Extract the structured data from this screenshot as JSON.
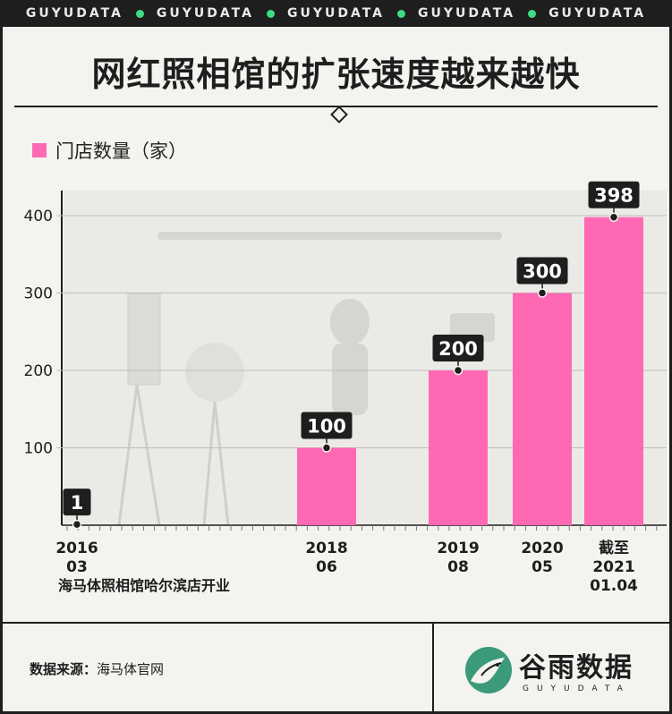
{
  "topbar": {
    "items": [
      "GUYUDATA",
      "GUYUDATA",
      "GUYUDATA",
      "GUYUDATA",
      "GUYUDATA"
    ],
    "dot_color": "#3ddc84"
  },
  "title": "网红照相馆的扩张速度越来越快",
  "legend": {
    "label": "门店数量（家）",
    "color": "#ff69b4"
  },
  "chart_data": {
    "type": "bar",
    "title": "网红照相馆的扩张速度越来越快",
    "categories": [
      "2016\n03",
      "2018\n06",
      "2019\n08",
      "2020\n05",
      "截至\n2021\n01.04"
    ],
    "date_values": [
      "2016-03",
      "2018-06",
      "2019-08",
      "2020-05",
      "2021-01-04"
    ],
    "series": [
      {
        "name": "门店数量（家）",
        "values": [
          1,
          100,
          200,
          300,
          398
        ],
        "color": "#ff69b4"
      }
    ],
    "data_labels": [
      "1",
      "100",
      "200",
      "300",
      "398"
    ],
    "x_tick_lines": [
      [
        "2016",
        "03"
      ],
      [
        "2018",
        "06"
      ],
      [
        "2019",
        "08"
      ],
      [
        "2020",
        "05"
      ],
      [
        "截至",
        "2021",
        "01.04"
      ]
    ],
    "annotation": "海马体照相馆哈尔滨店开业",
    "y_ticks": [
      100,
      200,
      300,
      400
    ],
    "ylim": [
      0,
      420
    ],
    "xlabel": "",
    "ylabel": "",
    "grid": false,
    "legend_position": "top-left"
  },
  "footer": {
    "source_label": "数据来源：",
    "source_value": "海马体官网",
    "logo_name": "谷雨数据",
    "logo_sub": "GUYUDATA"
  },
  "colors": {
    "bar": "#ff69b4",
    "dark": "#1e1e1e",
    "bg": "#f4f3ef",
    "accent": "#3ddc84",
    "logo_green": "#3a9a7a"
  }
}
